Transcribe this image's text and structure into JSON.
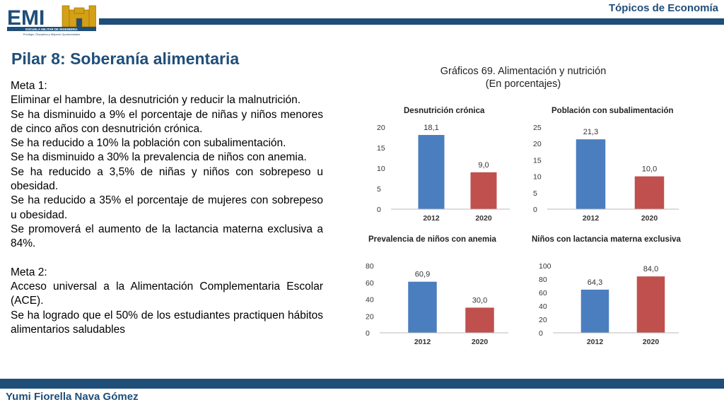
{
  "header": {
    "logo_text": "EMI",
    "logo_subtitle": "ESCUELA MILITAR DE INGENIERIA",
    "logo_motto": "Prestigio, Disciplina y Mejores Oportunidades",
    "topic": "Tópicos de Economía"
  },
  "slide_title": "Pilar 8: Soberanía alimentaria",
  "text": {
    "meta1_heading": "Meta 1:",
    "meta1_goal": "Eliminar el hambre, la desnutrición y reducir la malnutrición.",
    "bullets1": [
      "Se ha disminuido a 9% el porcentaje de niñas y niños menores de cinco años con desnutrición crónica.",
      "Se ha reducido a 10% la población con subalimentación.",
      "Se ha disminuido a 30% la prevalencia de niños con anemia.",
      "Se ha reducido a 3,5% de niñas y niños con sobrepeso u obesidad.",
      "Se ha reducido a 35% el porcentaje de mujeres con sobrepeso u obesidad.",
      "Se promoverá el aumento de la lactancia materna exclusiva a 84%."
    ],
    "meta2_heading": "Meta 2:",
    "meta2_goal": "Acceso universal a la Alimentación Complementaria Escolar (ACE).",
    "meta2_result": "Se ha logrado que el 50% de los estudiantes practiquen hábitos alimentarios saludables"
  },
  "charts_heading": {
    "title": "Gráficos 69. Alimentación y nutrición",
    "subtitle": "(En porcentajes)"
  },
  "footer": {
    "author": "Yumi Fiorella Nava Gómez"
  },
  "colors": {
    "primary": "#1f4e79",
    "bar_2012": "#4a7ebf",
    "bar_2020": "#c0504d"
  },
  "chart_data": [
    {
      "type": "bar",
      "title": "Desnutrición crónica",
      "categories": [
        "2012",
        "2020"
      ],
      "values": [
        18.1,
        9.0
      ],
      "value_labels": [
        "18,1",
        "9,0"
      ],
      "ylim": [
        0,
        20
      ],
      "yticks": [
        0,
        5,
        10,
        15,
        20
      ]
    },
    {
      "type": "bar",
      "title": "Población con subalimentación",
      "categories": [
        "2012",
        "2020"
      ],
      "values": [
        21.3,
        10.0
      ],
      "value_labels": [
        "21,3",
        "10,0"
      ],
      "ylim": [
        0,
        25
      ],
      "yticks": [
        0,
        5,
        10,
        15,
        20,
        25
      ]
    },
    {
      "type": "bar",
      "title": "Prevalencia de niños con anemia",
      "categories": [
        "2012",
        "2020"
      ],
      "values": [
        60.9,
        30.0
      ],
      "value_labels": [
        "60,9",
        "30,0"
      ],
      "ylim": [
        0,
        80
      ],
      "yticks": [
        0,
        20,
        40,
        60,
        80
      ]
    },
    {
      "type": "bar",
      "title": "Niños con lactancia materna exclusiva",
      "categories": [
        "2012",
        "2020"
      ],
      "values": [
        64.3,
        84.0
      ],
      "value_labels": [
        "64,3",
        "84,0"
      ],
      "ylim": [
        0,
        100
      ],
      "yticks": [
        0,
        20,
        40,
        60,
        80,
        100
      ]
    }
  ]
}
